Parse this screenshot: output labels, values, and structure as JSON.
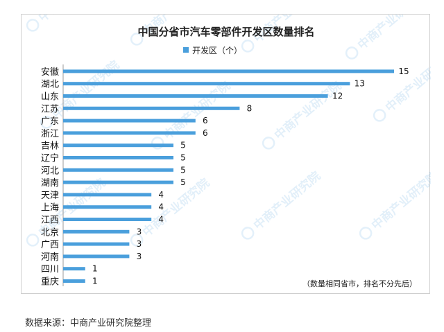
{
  "watermark": "中商产业研究院",
  "chart_data": {
    "type": "bar",
    "orientation": "horizontal",
    "title": "中国分省市汽车零部件开发区数量排名",
    "legend": {
      "label": "开发区（个）",
      "placement": "top"
    },
    "categories": [
      "安徽",
      "湖北",
      "山东",
      "江苏",
      "广东",
      "浙江",
      "吉林",
      "辽宁",
      "河北",
      "湖南",
      "天津",
      "上海",
      "江西",
      "北京",
      "广西",
      "河南",
      "四川",
      "重庆"
    ],
    "series": [
      {
        "name": "开发区（个）",
        "values": [
          15,
          13,
          12,
          8,
          6,
          6,
          5,
          5,
          5,
          5,
          4,
          4,
          4,
          3,
          3,
          3,
          1,
          1
        ]
      }
    ],
    "xlim": [
      0,
      15
    ],
    "grid": false,
    "color": "#4a9fdc",
    "note": "（数量相同省市，排名不分先后）"
  },
  "source": "数据来源：中商产业研究院整理"
}
